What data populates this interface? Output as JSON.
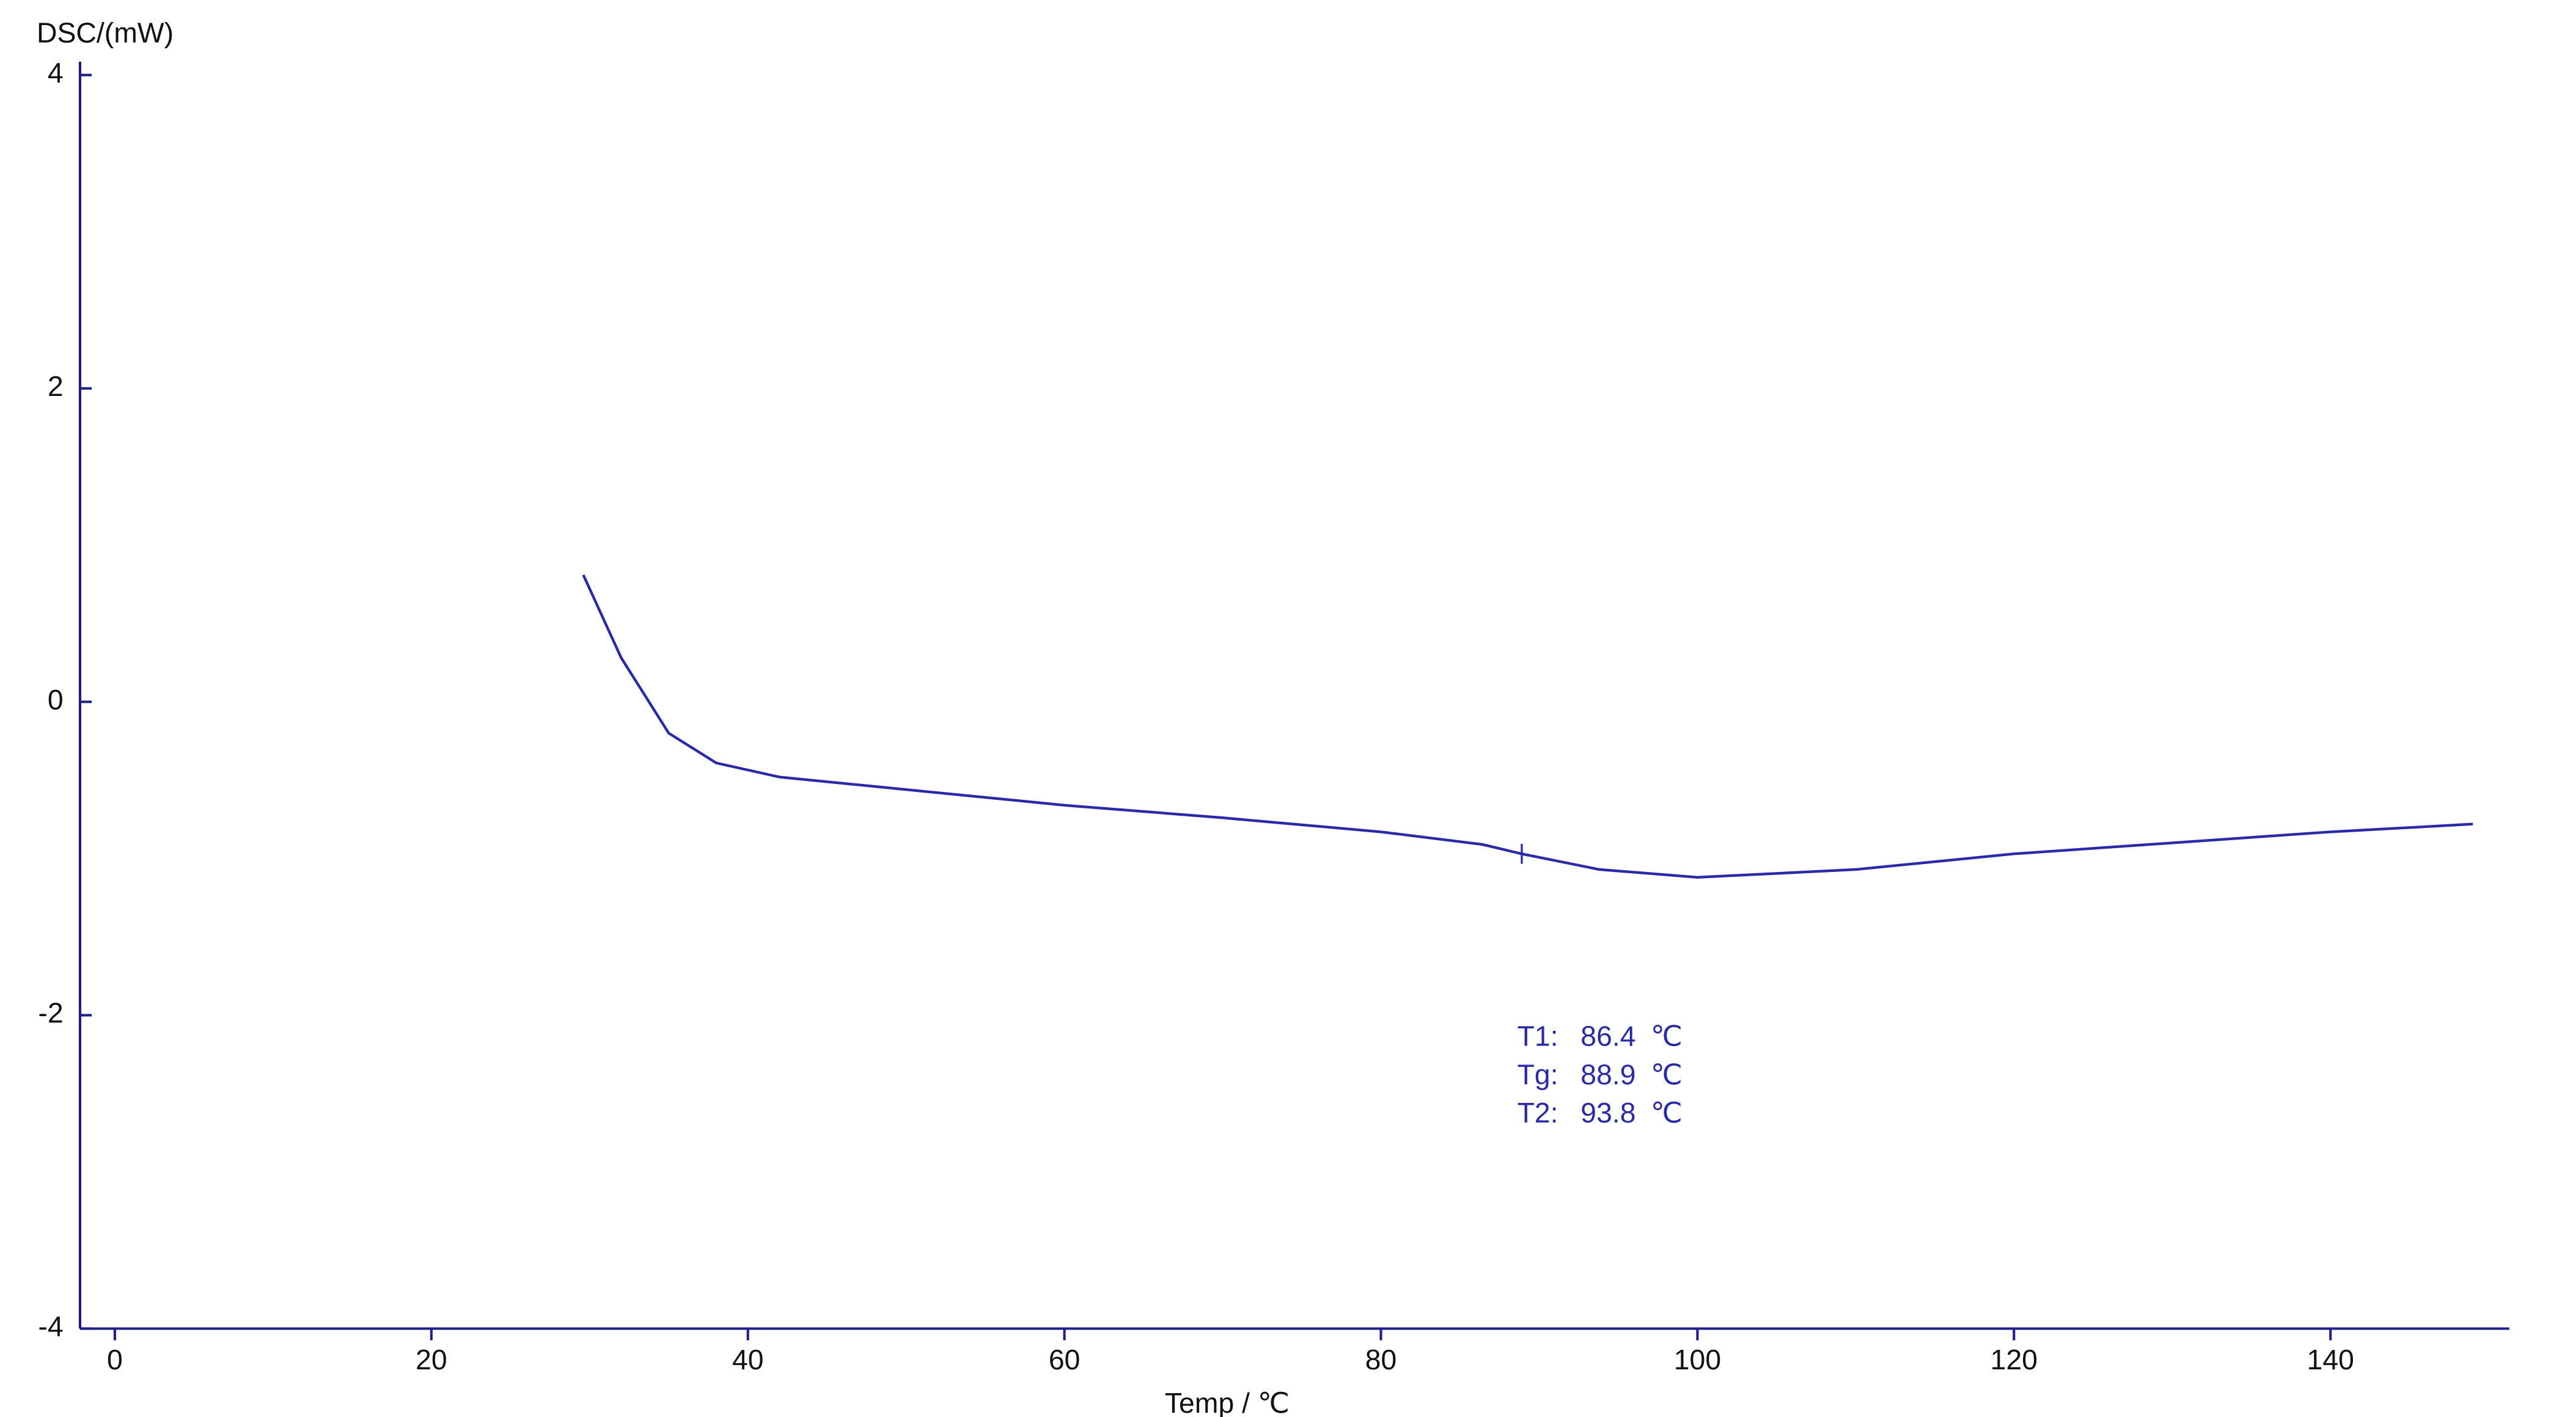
{
  "chart_data": {
    "type": "line",
    "y_label": "DSC/(mW)",
    "x_label": "Temp / ℃",
    "x": [
      29.6,
      32,
      35,
      38,
      42,
      50,
      60,
      70,
      80,
      86.4,
      88.9,
      93.8,
      100,
      110,
      120,
      130,
      140,
      149
    ],
    "series": [
      {
        "color": "#2a2aa8",
        "values": [
          0.81,
          0.28,
          -0.2,
          -0.39,
          -0.48,
          -0.56,
          -0.66,
          -0.74,
          -0.83,
          -0.91,
          -0.97,
          -1.07,
          -1.12,
          -1.07,
          -0.97,
          -0.9,
          -0.83,
          -0.78
        ]
      }
    ],
    "xlim": [
      -2.2,
      151.3
    ],
    "xticks": [
      0,
      20,
      40,
      60,
      80,
      100,
      120,
      140
    ],
    "ylim": [
      -4,
      4
    ],
    "yticks": [
      -4,
      -2,
      0,
      2,
      4
    ],
    "axis_color": "#1f1f8a",
    "annotations": [
      {
        "label": "T1:",
        "value": 86.4,
        "unit": "℃"
      },
      {
        "label": "Tg:",
        "value": 88.9,
        "unit": "℃"
      },
      {
        "label": "T2:",
        "value": 93.8,
        "unit": "℃"
      }
    ],
    "marker_annotation": 1
  }
}
